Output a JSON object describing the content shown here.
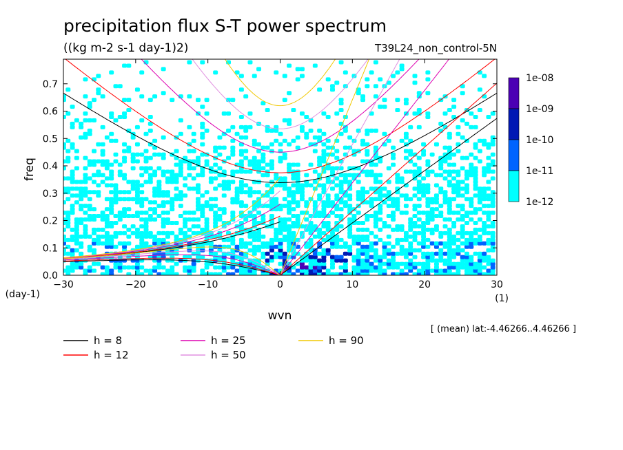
{
  "chart_data": {
    "type": "heatmap",
    "title": "precipitation flux S-T power spectrum",
    "subtitle": "((kg m-2 s-1 day-1)2)",
    "run_label": "T39L24_non_control-5N",
    "xlabel": "wvn",
    "ylabel": "freq",
    "x_unit": "(1)",
    "y_unit": "(day-1)",
    "xlim": [
      -30,
      30
    ],
    "ylim": [
      0,
      0.79
    ],
    "x_ticks": [
      -30,
      -20,
      -10,
      0,
      10,
      20,
      30
    ],
    "y_ticks": [
      0.0,
      0.1,
      0.2,
      0.3,
      0.4,
      0.5,
      0.6,
      0.7
    ],
    "x_tick_labels": [
      "−30",
      "−20",
      "−10",
      "0",
      "10",
      "20",
      "30"
    ],
    "y_tick_labels": [
      "0.0",
      "0.1",
      "0.2",
      "0.3",
      "0.4",
      "0.5",
      "0.6",
      "0.7"
    ],
    "colorbar": {
      "labels": [
        "1e-08",
        "1e-09",
        "1e-10",
        "1e-11",
        "1e-12"
      ],
      "colors": [
        "#4b00b4",
        "#0018b4",
        "#0064ff",
        "#00ffff"
      ],
      "levels": [
        1e-12,
        1e-11,
        1e-10,
        1e-09,
        1e-08
      ]
    },
    "dispersion_curves": [
      {
        "label": "h =  8",
        "h": 8,
        "color": "#000000"
      },
      {
        "label": "h = 12",
        "h": 12,
        "color": "#ff0000"
      },
      {
        "label": "h = 25",
        "h": 25,
        "color": "#dd00b0"
      },
      {
        "label": "h = 50",
        "h": 50,
        "color": "#e090e0"
      },
      {
        "label": "h = 90",
        "h": 90,
        "color": "#f0c800"
      }
    ],
    "footnote": "[ (mean) lat:-4.46266..4.46266 ]"
  },
  "colors": {
    "level_1e-12": "#00ffff",
    "level_1e-11": "#0064ff",
    "level_1e-10": "#0018b4",
    "level_1e-09": "#4b00b4"
  }
}
